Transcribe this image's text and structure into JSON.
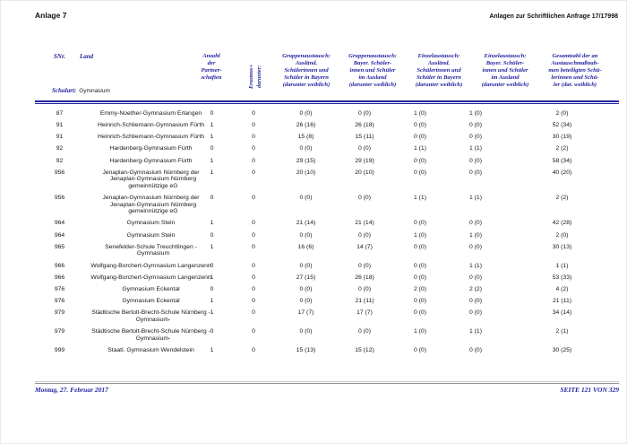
{
  "header": {
    "left": "Anlage 7",
    "right": "Anlagen zur Schriftlichen Anfrage 17/17998"
  },
  "table": {
    "schulart": {
      "label": "Schulart:",
      "value": "Gymnasium"
    },
    "headers": {
      "snr": "SNr.",
      "land": "Land",
      "anzahl_partnerschaften": "Anzahl\nder\nPartner-\nschaften",
      "darunter_erasmus": "darunter:\nErasmus+",
      "gruppenaustausch_auslaend": "Gruppenaustausch:\nAusländ.\nSchülerinnen und\nSchüler in Bayern\n(darunter weiblich)",
      "gruppenaustausch_bayer": "Gruppenaustausch:\nBayer. Schüler-\ninnen und Schüler\nim Ausland\n(darunter weiblich)",
      "einzelaustausch_auslaend": "Einzelaustausch:\nAusländ.\nSchülerinnen und\nSchüler in Bayern\n(darunter weiblich)",
      "einzelaustausch_bayer": "Einzelaustausch:\nBayer. Schüler-\ninnen und Schüler\nim Ausland\n(darunter weiblich)",
      "gesamtzahl": "Gesamtzahl der an\nAustauschmaßnah-\nmen beteiligten Schü-\nlerinnen und Schü-\nler (dar. weiblich)"
    },
    "rows": [
      {
        "snr": "87",
        "name": "Emmy-Noether-Gymnasium Erlangen",
        "values": [
          "0",
          "0",
          "0 (0)",
          "0 (0)",
          "1 (0)",
          "1 (0)",
          "2 (0)"
        ]
      },
      {
        "snr": "91",
        "name": "Heinrich-Schliemann-Gymnasium Fürth",
        "values": [
          "1",
          "0",
          "26 (16)",
          "26 (18)",
          "0 (0)",
          "0 (0)",
          "52 (34)"
        ]
      },
      {
        "snr": "91",
        "name": "Heinrich-Schliemann-Gymnasium Fürth",
        "values": [
          "1",
          "0",
          "15 (8)",
          "15 (11)",
          "0 (0)",
          "0 (0)",
          "30 (19)"
        ]
      },
      {
        "snr": "92",
        "name": "Hardenberg-Gymnasium Fürth",
        "values": [
          "0",
          "0",
          "0 (0)",
          "0 (0)",
          "1 (1)",
          "1 (1)",
          "2 (2)"
        ]
      },
      {
        "snr": "92",
        "name": "Hardenberg-Gymnasium Fürth",
        "values": [
          "1",
          "0",
          "29 (15)",
          "29 (19)",
          "0 (0)",
          "0 (0)",
          "58 (34)"
        ]
      },
      {
        "snr": "956",
        "name": "Jenaplan-Gymnasium Nürnberg der\nJenaplan-Gymnasium Nürnberg\ngemeinnützige eG",
        "values": [
          "1",
          "0",
          "20 (10)",
          "20 (10)",
          "0 (0)",
          "0 (0)",
          "40 (20)"
        ]
      },
      {
        "snr": "956",
        "name": "Jenaplan-Gymnasium Nürnberg der\nJenaplan-Gymnasium Nürnberg\ngemeinnützige eG",
        "values": [
          "0",
          "0",
          "0 (0)",
          "0 (0)",
          "1 (1)",
          "1 (1)",
          "2 (2)"
        ]
      },
      {
        "snr": "964",
        "name": "Gymnasium Stein",
        "values": [
          "1",
          "0",
          "21 (14)",
          "21 (14)",
          "0 (0)",
          "0 (0)",
          "42 (28)"
        ]
      },
      {
        "snr": "964",
        "name": "Gymnasium Stein",
        "values": [
          "0",
          "0",
          "0 (0)",
          "0 (0)",
          "1 (0)",
          "1 (0)",
          "2 (0)"
        ]
      },
      {
        "snr": "965",
        "name": "Senefelder-Schule Treuchtlingen -\nGymnasium",
        "values": [
          "1",
          "0",
          "16 (6)",
          "14 (7)",
          "0 (0)",
          "0 (0)",
          "30 (13)"
        ]
      },
      {
        "snr": "966",
        "name": "Wolfgang-Borchert-Gymnasium Langenzenn",
        "values": [
          "0",
          "0",
          "0 (0)",
          "0 (0)",
          "0 (0)",
          "1 (1)",
          "1 (1)"
        ]
      },
      {
        "snr": "966",
        "name": "Wolfgang-Borchert-Gymnasium Langenzenn",
        "values": [
          "1",
          "0",
          "27 (15)",
          "26 (18)",
          "0 (0)",
          "0 (0)",
          "53 (33)"
        ]
      },
      {
        "snr": "976",
        "name": "Gymnasium Eckental",
        "values": [
          "0",
          "0",
          "0 (0)",
          "0 (0)",
          "2 (0)",
          "2 (2)",
          "4 (2)"
        ]
      },
      {
        "snr": "976",
        "name": "Gymnasium Eckental",
        "values": [
          "1",
          "0",
          "0 (0)",
          "21 (11)",
          "0 (0)",
          "0 (0)",
          "21 (11)"
        ]
      },
      {
        "snr": "979",
        "name": "Städtische Bertolt-Brecht-Schule Nürnberg -\nGymnasium-",
        "values": [
          "1",
          "0",
          "17 (7)",
          "17 (7)",
          "0 (0)",
          "0 (0)",
          "34 (14)"
        ]
      },
      {
        "snr": "979",
        "name": "Städtische Bertolt-Brecht-Schule Nürnberg -\nGymnasium-",
        "values": [
          "0",
          "0",
          "0 (0)",
          "0 (0)",
          "1 (0)",
          "1 (1)",
          "2 (1)"
        ]
      },
      {
        "snr": "999",
        "name": "Staatl. Gymnasium Wendelstein",
        "values": [
          "1",
          "0",
          "15 (13)",
          "15 (12)",
          "0 (0)",
          "0 (0)",
          "30 (25)"
        ]
      }
    ]
  },
  "footer": {
    "left": "Montag, 27. Februar 2017",
    "right": "SEITE 121 VON 329"
  },
  "colors": {
    "accent_navy": "#2323a0",
    "body_text": "#161616"
  }
}
